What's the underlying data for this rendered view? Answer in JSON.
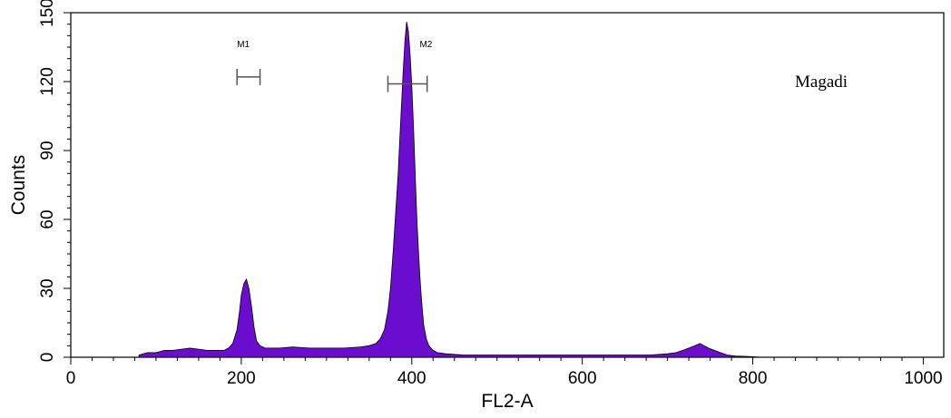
{
  "chart_data": {
    "type": "area",
    "xlabel": "FL2-A",
    "ylabel": "Counts",
    "xlim": [
      0,
      1024
    ],
    "ylim": [
      0,
      150
    ],
    "x_ticks": [
      0,
      200,
      400,
      600,
      800,
      1000
    ],
    "y_ticks": [
      0,
      30,
      60,
      90,
      120,
      150
    ],
    "grid": false,
    "fill_color": "#6a0dce",
    "series": [
      {
        "x": [
          80,
          90,
          100,
          110,
          120,
          130,
          140,
          150,
          160,
          170,
          180,
          185,
          190,
          195,
          198,
          200,
          203,
          206,
          209,
          212,
          215,
          218,
          222,
          228,
          235,
          245,
          260,
          280,
          300,
          320,
          340,
          350,
          358,
          363,
          368,
          372,
          375,
          378,
          381,
          384,
          386,
          388,
          390,
          392,
          394,
          396,
          398,
          400,
          402,
          404,
          406,
          408,
          410,
          412,
          414,
          417,
          420,
          425,
          430,
          440,
          460,
          500,
          550,
          600,
          650,
          680,
          700,
          710,
          718,
          725,
          732,
          738,
          743,
          748,
          755,
          762,
          770,
          780,
          795,
          810
        ],
        "y": [
          1,
          2,
          2,
          3,
          3,
          3.5,
          4,
          3.5,
          3,
          3,
          3,
          4,
          6,
          12,
          20,
          27,
          32,
          34,
          30,
          22,
          13,
          7,
          5,
          4,
          4,
          4,
          4.5,
          4,
          4,
          4,
          4.5,
          5,
          6,
          8,
          12,
          20,
          30,
          45,
          62,
          80,
          95,
          110,
          125,
          138,
          146,
          142,
          132,
          118,
          100,
          80,
          60,
          45,
          32,
          22,
          14,
          8,
          5,
          3,
          2,
          1.5,
          1,
          1,
          1,
          1,
          1,
          1,
          1.5,
          2,
          3,
          4,
          5,
          6,
          5,
          4,
          3,
          2,
          1,
          0.5,
          0.3,
          0
        ]
      }
    ],
    "markers": [
      {
        "label": "M1",
        "from": 195,
        "to": 222,
        "y": 122
      },
      {
        "label": "M2",
        "from": 372,
        "to": 418,
        "y": 119
      }
    ],
    "annotation": "Magadi"
  }
}
